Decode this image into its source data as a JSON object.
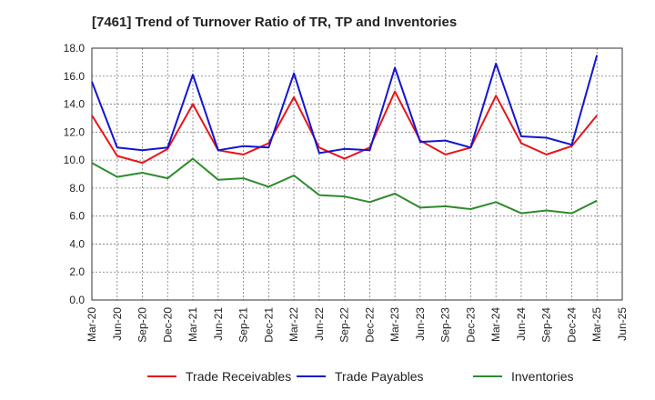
{
  "chart_data": {
    "type": "line",
    "title": "[7461]  Trend of Turnover Ratio of TR, TP and Inventories",
    "xlabel": "",
    "ylabel": "",
    "ylim": [
      0,
      18
    ],
    "y_ticks": [
      "0.0",
      "2.0",
      "4.0",
      "6.0",
      "8.0",
      "10.0",
      "12.0",
      "14.0",
      "16.0",
      "18.0"
    ],
    "x_ticks": [
      "Mar-20",
      "Jun-20",
      "Sep-20",
      "Dec-20",
      "Mar-21",
      "Jun-21",
      "Sep-21",
      "Dec-21",
      "Mar-22",
      "Jun-22",
      "Sep-22",
      "Dec-22",
      "Mar-23",
      "Jun-23",
      "Sep-23",
      "Dec-23",
      "Mar-24",
      "Jun-24",
      "Sep-24",
      "Dec-24",
      "Mar-25",
      "Jun-25"
    ],
    "grid": true,
    "legend_position": "bottom",
    "x": [
      "Mar-20",
      "Jun-20",
      "Sep-20",
      "Dec-20",
      "Mar-21",
      "Jun-21",
      "Sep-21",
      "Dec-21",
      "Mar-22",
      "Jun-22",
      "Sep-22",
      "Dec-22",
      "Mar-23",
      "Jun-23",
      "Sep-23",
      "Dec-23",
      "Mar-24",
      "Jun-24",
      "Sep-24",
      "Dec-24",
      "Mar-25"
    ],
    "series": [
      {
        "name": "Trade Receivables",
        "color": "#e8141a",
        "values": [
          13.2,
          10.3,
          9.8,
          10.8,
          14.0,
          10.7,
          10.4,
          11.2,
          14.5,
          10.9,
          10.1,
          10.9,
          14.9,
          11.4,
          10.4,
          10.9,
          14.6,
          11.2,
          10.4,
          11.0,
          13.2
        ]
      },
      {
        "name": "Trade Payables",
        "color": "#1414d2",
        "values": [
          15.6,
          10.9,
          10.7,
          10.9,
          16.1,
          10.7,
          11.0,
          10.9,
          16.2,
          10.5,
          10.8,
          10.7,
          16.6,
          11.3,
          11.4,
          10.9,
          16.9,
          11.7,
          11.6,
          11.1,
          17.5
        ]
      },
      {
        "name": "Inventories",
        "color": "#2e8b2e",
        "values": [
          9.8,
          8.8,
          9.1,
          8.7,
          10.1,
          8.6,
          8.7,
          8.1,
          8.9,
          7.5,
          7.4,
          7.0,
          7.6,
          6.6,
          6.7,
          6.5,
          7.0,
          6.2,
          6.4,
          6.2,
          7.1
        ]
      }
    ]
  }
}
